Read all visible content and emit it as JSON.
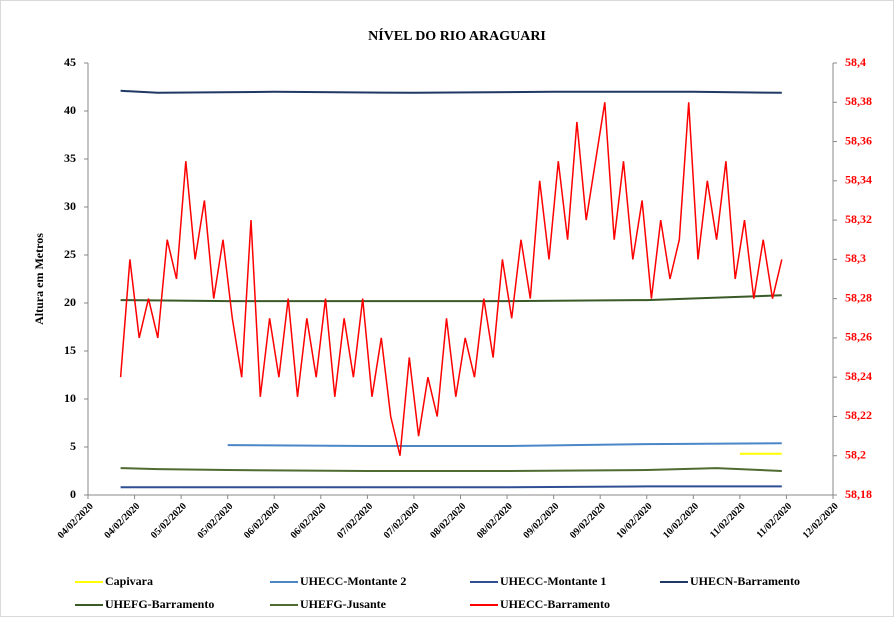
{
  "chart_data": {
    "type": "line",
    "title": "NÍVEL DO RIO ARAGUARI",
    "ylabel": "Altura  em Metros",
    "xlim": [
      0,
      16
    ],
    "xticks": [
      {
        "value": 0,
        "label": "04/02/2020"
      },
      {
        "value": 1,
        "label": "04/02/2020"
      },
      {
        "value": 2,
        "label": "05/02/2020"
      },
      {
        "value": 3,
        "label": "05/02/2020"
      },
      {
        "value": 4,
        "label": "06/02/2020"
      },
      {
        "value": 5,
        "label": "06/02/2020"
      },
      {
        "value": 6,
        "label": "07/02/2020"
      },
      {
        "value": 7,
        "label": "07/02/2020"
      },
      {
        "value": 8,
        "label": "08/02/2020"
      },
      {
        "value": 9,
        "label": "08/02/2020"
      },
      {
        "value": 10,
        "label": "09/02/2020"
      },
      {
        "value": 11,
        "label": "09/02/2020"
      },
      {
        "value": 12,
        "label": "10/02/2020"
      },
      {
        "value": 13,
        "label": "10/02/2020"
      },
      {
        "value": 14,
        "label": "11/02/2020"
      },
      {
        "value": 15,
        "label": "11/02/2020"
      },
      {
        "value": 16,
        "label": "12/02/2020"
      }
    ],
    "ylim": [
      0,
      45
    ],
    "yticks": [
      0,
      5,
      10,
      15,
      20,
      25,
      30,
      35,
      40,
      45
    ],
    "y2lim": [
      58.18,
      58.4
    ],
    "y2ticks": [
      {
        "value": 58.4,
        "label": "58,4"
      },
      {
        "value": 58.38,
        "label": "58,38"
      },
      {
        "value": 58.36,
        "label": "58,36"
      },
      {
        "value": 58.34,
        "label": "58,34"
      },
      {
        "value": 58.32,
        "label": "58,32"
      },
      {
        "value": 58.3,
        "label": "58,3"
      },
      {
        "value": 58.28,
        "label": "58,28"
      },
      {
        "value": 58.26,
        "label": "58,26"
      },
      {
        "value": 58.24,
        "label": "58,24"
      },
      {
        "value": 58.22,
        "label": "58,22"
      },
      {
        "value": 58.2,
        "label": "58,2"
      },
      {
        "value": 58.18,
        "label": "58,18"
      }
    ],
    "legend": "bottom",
    "series": [
      {
        "name": "Capivara",
        "color": "#ffff00",
        "x": [
          14.0,
          14.9
        ],
        "values": [
          4.3,
          4.3
        ]
      },
      {
        "name": "UHECC-Montante 2",
        "color": "#4a86c8",
        "x": [
          3.0,
          6.0,
          9.0,
          12.0,
          14.9
        ],
        "values": [
          5.2,
          5.1,
          5.1,
          5.3,
          5.4
        ]
      },
      {
        "name": "UHECC-Montante 1",
        "color": "#2f4f94",
        "x": [
          0.7,
          3.0,
          6.0,
          9.0,
          12.0,
          14.9
        ],
        "values": [
          0.8,
          0.8,
          0.8,
          0.8,
          0.9,
          0.9
        ]
      },
      {
        "name": "UHECN-Barramento",
        "color": "#1f3864",
        "x": [
          0.7,
          1.5,
          4.0,
          7.0,
          10.0,
          13.0,
          14.9
        ],
        "values": [
          42.1,
          41.9,
          42.0,
          41.9,
          42.0,
          42.0,
          41.9
        ]
      },
      {
        "name": "UHEFG-Barramento",
        "color": "#3a5a28",
        "x": [
          0.7,
          3.0,
          6.0,
          9.0,
          12.0,
          14.9
        ],
        "values": [
          20.3,
          20.2,
          20.2,
          20.2,
          20.3,
          20.8
        ]
      },
      {
        "name": "UHEFG-Jusante",
        "color": "#4e6b30",
        "x": [
          0.7,
          1.5,
          3.0,
          6.0,
          9.0,
          12.0,
          13.5,
          14.9
        ],
        "values": [
          2.8,
          2.7,
          2.6,
          2.5,
          2.5,
          2.6,
          2.8,
          2.5
        ]
      },
      {
        "name": "UHECC-Barramento",
        "color": "#ff0000",
        "axis": "y2",
        "x": [
          0.7,
          0.9,
          1.1,
          1.3,
          1.5,
          1.7,
          1.9,
          2.1,
          2.3,
          2.5,
          2.7,
          2.9,
          3.1,
          3.3,
          3.5,
          3.7,
          3.9,
          4.1,
          4.3,
          4.5,
          4.7,
          4.9,
          5.1,
          5.3,
          5.5,
          5.7,
          5.9,
          6.1,
          6.3,
          6.5,
          6.7,
          6.9,
          7.1,
          7.3,
          7.5,
          7.7,
          7.9,
          8.1,
          8.3,
          8.5,
          8.7,
          8.9,
          9.1,
          9.3,
          9.5,
          9.7,
          9.9,
          10.1,
          10.3,
          10.5,
          10.7,
          10.9,
          11.1,
          11.3,
          11.5,
          11.7,
          11.9,
          12.1,
          12.3,
          12.5,
          12.7,
          12.9,
          13.1,
          13.3,
          13.5,
          13.7,
          13.9,
          14.1,
          14.3,
          14.5,
          14.7,
          14.9
        ],
        "values": [
          58.24,
          58.3,
          58.26,
          58.28,
          58.26,
          58.31,
          58.29,
          58.35,
          58.3,
          58.33,
          58.28,
          58.31,
          58.27,
          58.24,
          58.32,
          58.23,
          58.27,
          58.24,
          58.28,
          58.23,
          58.27,
          58.24,
          58.28,
          58.23,
          58.27,
          58.24,
          58.28,
          58.23,
          58.26,
          58.22,
          58.2,
          58.25,
          58.21,
          58.24,
          58.22,
          58.27,
          58.23,
          58.26,
          58.24,
          58.28,
          58.25,
          58.3,
          58.27,
          58.31,
          58.28,
          58.34,
          58.3,
          58.35,
          58.31,
          58.37,
          58.32,
          58.35,
          58.38,
          58.31,
          58.35,
          58.3,
          58.33,
          58.28,
          58.32,
          58.29,
          58.31,
          58.38,
          58.3,
          58.34,
          58.31,
          58.35,
          58.29,
          58.32,
          58.28,
          58.31,
          58.28,
          58.3
        ]
      }
    ]
  }
}
